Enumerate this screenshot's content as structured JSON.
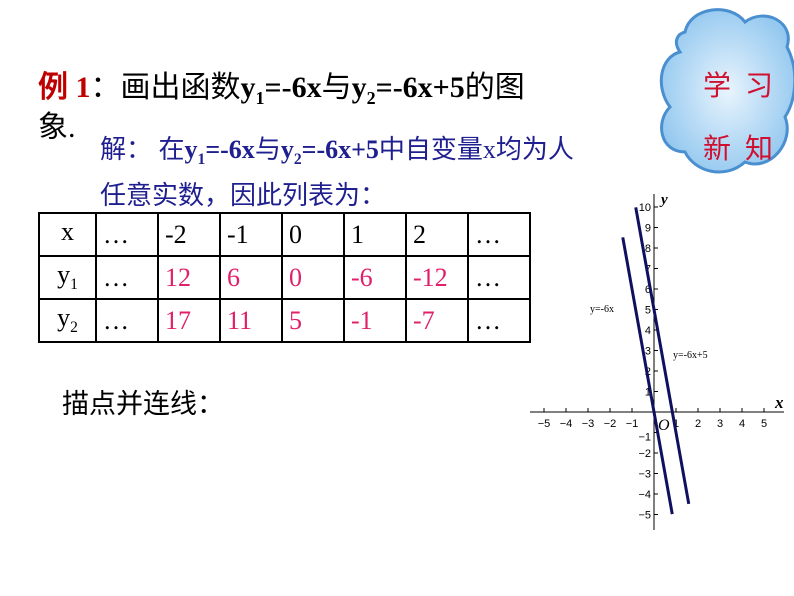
{
  "title": {
    "prefix": "例 1",
    "colon": "：",
    "text1": "画出函数",
    "y1": "y",
    "s1": "1",
    "eq1": "=-6x",
    "with": "与",
    "y2": "y",
    "s2": "2",
    "eq2": "=-6x+5",
    "text2": "的图",
    "line2": "象."
  },
  "solution": {
    "label": "解：",
    "in": "在",
    "y1": "y",
    "s1": "1",
    "eq1": "=-6x",
    "with": "与",
    "y2": "y",
    "s2": "2",
    "eq2": "=-6x+5",
    "rest": "中自变量x均为人",
    "line2": "任意实数，因此列表为："
  },
  "table": {
    "rows": [
      {
        "head": "x",
        "sub": "",
        "cells": [
          "…",
          "-2",
          "-1",
          "0",
          "1",
          "2",
          "…"
        ]
      },
      {
        "head": "y",
        "sub": "1",
        "cells": [
          "…",
          "12",
          "6",
          "0",
          "-6",
          "-12",
          "…"
        ]
      },
      {
        "head": "y",
        "sub": "2",
        "cells": [
          "…",
          "17",
          "11",
          "5",
          "-1",
          "-7",
          "…"
        ]
      }
    ]
  },
  "draw_text": "描点并连线：",
  "badge": {
    "line1": "学习",
    "line2": "新知",
    "bg": "#a8d4f4",
    "color": "#d01030"
  },
  "graph": {
    "x_label": "x",
    "y_label": "y",
    "origin_label": "O",
    "x_ticks": [
      -5,
      -4,
      -3,
      -2,
      -1,
      1,
      2,
      3,
      4,
      5
    ],
    "y_ticks": [
      -5,
      -4,
      -3,
      -2,
      -1,
      1,
      2,
      3,
      4,
      5,
      6,
      7,
      8,
      9,
      10
    ],
    "lines": [
      {
        "label": "y=-6x",
        "slope": -6,
        "intercept": 0,
        "x_range": [
          -1.42,
          0.83
        ]
      },
      {
        "label": "y=-6x+5",
        "slope": -6,
        "intercept": 5,
        "x_range": [
          -0.83,
          1.58
        ]
      }
    ],
    "line_color": "#101060"
  }
}
